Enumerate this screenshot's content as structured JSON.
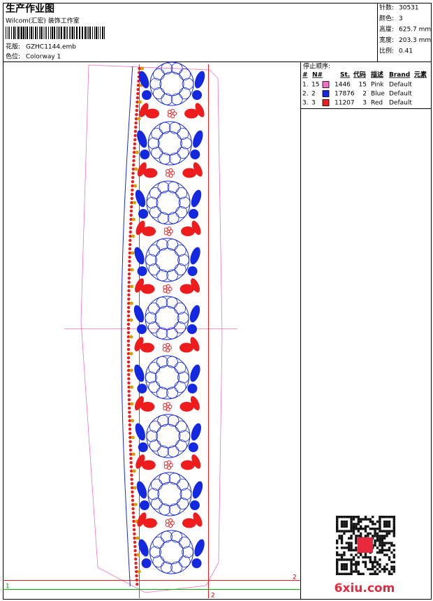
{
  "header": {
    "title": "生产作业图",
    "studio": "Wilcom(汇宏) 装饰工作室",
    "design_label": "花版:",
    "design_file": "GZHC1144.emb",
    "colorway_label": "色位:",
    "colorway": "Colorway 1"
  },
  "info": [
    {
      "label": "针数:",
      "value": "30531"
    },
    {
      "label": "颜色:",
      "value": "3"
    },
    {
      "label": "高度:",
      "value": "625.7 mm"
    },
    {
      "label": "宽度:",
      "value": "203.3 mm"
    },
    {
      "label": "比例:",
      "value": "0.41"
    }
  ],
  "stop_sequence": {
    "title": "停止顺序:",
    "columns": [
      "#",
      "N#",
      "St.",
      "代码",
      "描述",
      "Brand",
      "元素"
    ],
    "rows": [
      {
        "index": "1.",
        "needle": "15",
        "color": "#f070c8",
        "stitches": "1446",
        "code": "15",
        "description": "Pink",
        "brand": "Default"
      },
      {
        "index": "2.",
        "needle": "2",
        "color": "#1428e0",
        "stitches": "17876",
        "code": "2",
        "description": "Blue",
        "brand": "Default"
      },
      {
        "index": "3.",
        "needle": "3",
        "color": "#ee1c1c",
        "stitches": "11207",
        "code": "3",
        "description": "Red",
        "brand": "Default"
      }
    ]
  },
  "guides": {
    "left_marker": "1",
    "right_marker": "2",
    "bottom_marker": "2"
  },
  "watermark": "6xiu.com"
}
